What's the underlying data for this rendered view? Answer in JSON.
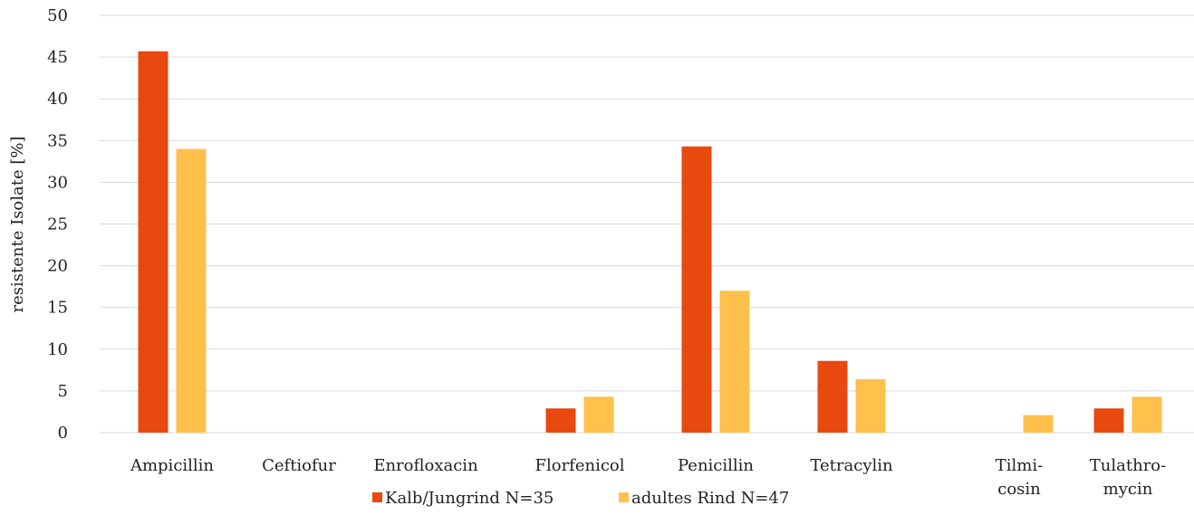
{
  "chart_data": {
    "type": "bar",
    "categories": [
      [
        "Ampicillin"
      ],
      [
        "Ceftiofur"
      ],
      [
        "Enrofloxacin"
      ],
      [
        "Florfenicol"
      ],
      [
        "Penicillin"
      ],
      [
        "Tetracylin"
      ],
      [
        "Tilmi-",
        "cosin"
      ],
      [
        "Tulathro-",
        "mycin"
      ]
    ],
    "series": [
      {
        "name": "Kalb/Jungrind N=35",
        "color": "#E8490F",
        "values": [
          45.7,
          0,
          0,
          2.9,
          34.3,
          8.6,
          0,
          2.9
        ]
      },
      {
        "name": "adultes Rind N=47",
        "color": "#FFC04C",
        "values": [
          34.0,
          0,
          0,
          4.3,
          17.0,
          6.4,
          2.1,
          4.3
        ]
      }
    ],
    "ylabel": "resistente Isolate [%]",
    "xlabel": "",
    "ylim": [
      0,
      50
    ],
    "yticks": [
      0,
      5,
      10,
      15,
      20,
      25,
      30,
      35,
      40,
      45,
      50
    ],
    "grid": true,
    "legend": "bottom"
  }
}
